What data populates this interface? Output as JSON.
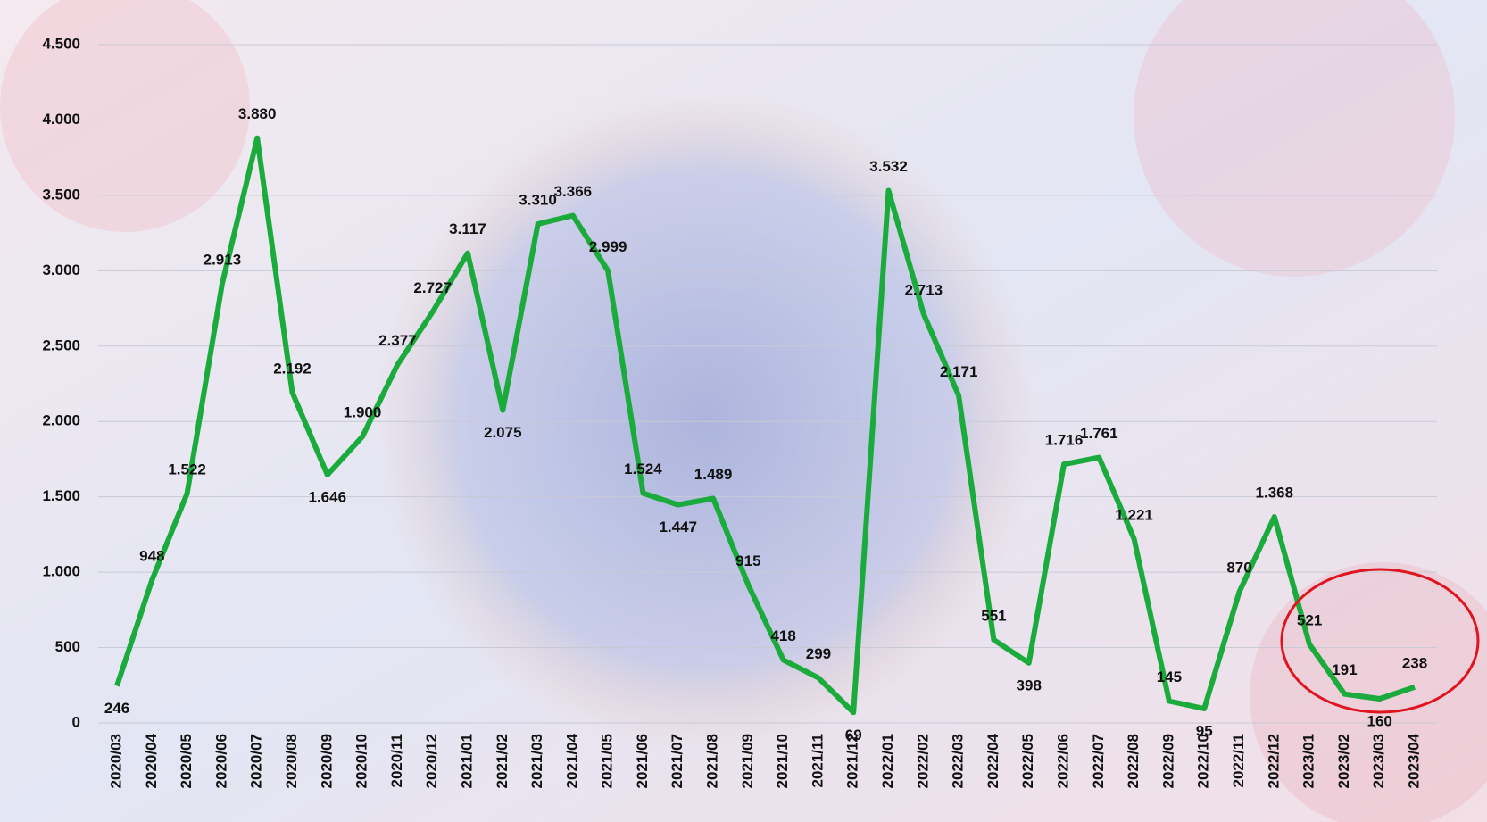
{
  "chart_data": {
    "type": "line",
    "categories": [
      "2020/03",
      "2020/04",
      "2020/05",
      "2020/06",
      "2020/07",
      "2020/08",
      "2020/09",
      "2020/10",
      "2020/11",
      "2020/12",
      "2021/01",
      "2021/02",
      "2021/03",
      "2021/04",
      "2021/05",
      "2021/06",
      "2021/07",
      "2021/08",
      "2021/09",
      "2021/10",
      "2021/11",
      "2021/12",
      "2022/01",
      "2022/02",
      "2022/03",
      "2022/04",
      "2022/05",
      "2022/06",
      "2022/07",
      "2022/08",
      "2022/09",
      "2022/10",
      "2022/11",
      "2022/12",
      "2023/01",
      "2023/02",
      "2023/03",
      "2023/04"
    ],
    "series": [
      {
        "color": "#1aab3c",
        "values": [
          246,
          948,
          1522,
          2913,
          3880,
          2192,
          1646,
          1900,
          2377,
          2727,
          3117,
          2075,
          3310,
          3366,
          2999,
          1524,
          1447,
          1489,
          915,
          418,
          299,
          69,
          3532,
          2713,
          2171,
          551,
          398,
          1716,
          1761,
          1221,
          145,
          95,
          870,
          1368,
          521,
          191,
          160,
          238
        ],
        "value_labels": [
          "246",
          "948",
          "1.522",
          "2.913",
          "3.880",
          "2.192",
          "1.646",
          "1.900",
          "2.377",
          "2.727",
          "3.117",
          "2.075",
          "3.310",
          "3.366",
          "2.999",
          "1.524",
          "1.447",
          "1.489",
          "915",
          "418",
          "299",
          "69",
          "3.532",
          "2.713",
          "2.171",
          "551",
          "398",
          "1.716",
          "1.761",
          "1.221",
          "145",
          "95",
          "870",
          "1.368",
          "521",
          "191",
          "160",
          "238"
        ]
      }
    ],
    "ylim": [
      0,
      4500
    ],
    "yticks": [
      0,
      500,
      {
        "value": 1000,
        "label": "1.000"
      },
      {
        "value": 1500,
        "label": "1.500"
      },
      {
        "value": 2000,
        "label": "2.000"
      },
      {
        "value": 2500,
        "label": "2.500"
      },
      {
        "value": 3000,
        "label": "3.000"
      },
      {
        "value": 3500,
        "label": "3.500"
      },
      {
        "value": 4000,
        "label": "4.000"
      },
      {
        "value": 4500,
        "label": "4.500"
      }
    ],
    "grid": true
  }
}
